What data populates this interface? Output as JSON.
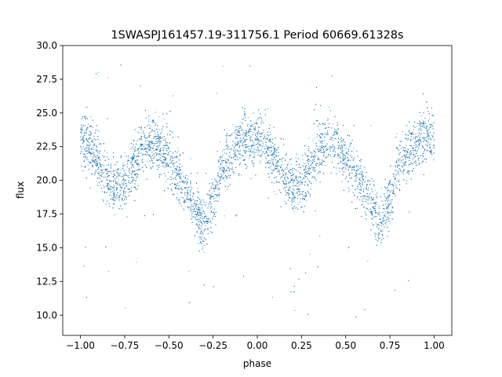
{
  "chart_data": {
    "type": "scatter",
    "title": "1SWASPJ161457.19-311756.1 Period 60669.61328s",
    "xlabel": "phase",
    "ylabel": "flux",
    "xlim": [
      -1.1,
      1.1
    ],
    "ylim": [
      8.5,
      30.0
    ],
    "x_ticks": [
      -1.0,
      -0.75,
      -0.5,
      -0.25,
      0.0,
      0.25,
      0.5,
      0.75,
      1.0
    ],
    "x_tick_labels": [
      "−1.00",
      "−0.75",
      "−0.50",
      "−0.25",
      "0.00",
      "0.25",
      "0.50",
      "0.75",
      "1.00"
    ],
    "y_ticks": [
      10.0,
      12.5,
      15.0,
      17.5,
      20.0,
      22.5,
      25.0,
      27.5,
      30.0
    ],
    "y_tick_labels": [
      "10.0",
      "12.5",
      "15.0",
      "17.5",
      "20.0",
      "22.5",
      "25.0",
      "27.5",
      "30.0"
    ],
    "grid": false,
    "marker_color": "#1f77b4",
    "series": [
      {
        "x_range": [
          -1.0,
          1.0
        ],
        "profile_phase": [
          0.0,
          0.05,
          0.1,
          0.15,
          0.2,
          0.25,
          0.3,
          0.35,
          0.4,
          0.45,
          0.5,
          0.55,
          0.6,
          0.65,
          0.7,
          0.75,
          0.8,
          0.85,
          0.9,
          0.95,
          1.0
        ],
        "profile_flux": [
          22.9,
          22.5,
          21.5,
          20.3,
          19.5,
          19.8,
          21.0,
          22.5,
          23.0,
          22.6,
          21.5,
          20.5,
          19.2,
          18.0,
          16.8,
          18.5,
          20.8,
          22.0,
          22.8,
          23.2,
          22.9
        ],
        "scatter_sigma": 1.0,
        "point_count": 9000,
        "outlier_fraction": 0.02,
        "outlier_range": [
          9.5,
          29.0
        ]
      }
    ]
  }
}
